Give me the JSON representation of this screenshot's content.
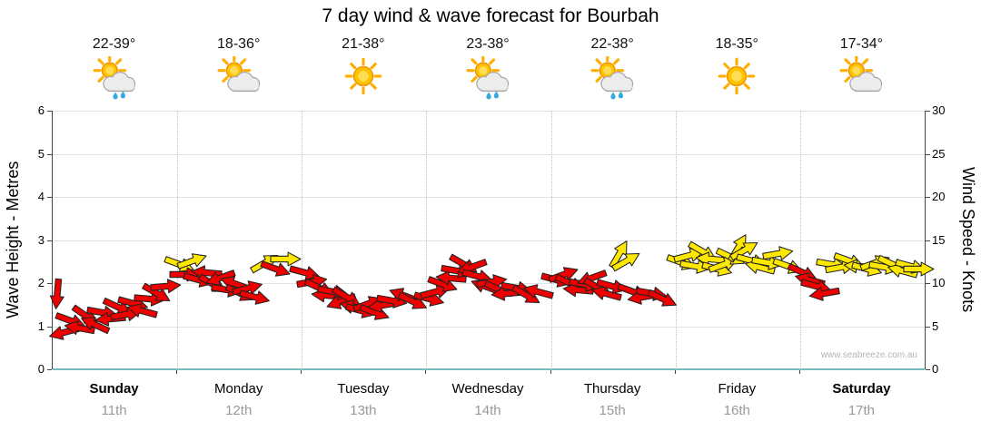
{
  "title": "7 day wind & wave forecast for Bourbah",
  "watermark": "www.seabreeze.com.au",
  "axes": {
    "left_label": "Wave Height - Metres",
    "right_label": "Wind Speed - Knots",
    "left_ticks": [
      0,
      1,
      2,
      3,
      4,
      5,
      6
    ],
    "right_ticks": [
      0,
      5,
      10,
      15,
      20,
      25,
      30
    ]
  },
  "days": [
    {
      "name": "Sunday",
      "date": "11th",
      "temp": "22-39°",
      "icon": "sun-cloud-rain",
      "bold": true
    },
    {
      "name": "Monday",
      "date": "12th",
      "temp": "18-36°",
      "icon": "sun-cloud",
      "bold": false
    },
    {
      "name": "Tuesday",
      "date": "13th",
      "temp": "21-38°",
      "icon": "sun",
      "bold": false
    },
    {
      "name": "Wednesday",
      "date": "14th",
      "temp": "23-38°",
      "icon": "sun-cloud-rain",
      "bold": false
    },
    {
      "name": "Thursday",
      "date": "15th",
      "temp": "22-38°",
      "icon": "sun-cloud-rain",
      "bold": false
    },
    {
      "name": "Friday",
      "date": "16th",
      "temp": "18-35°",
      "icon": "sun",
      "bold": false
    },
    {
      "name": "Saturday",
      "date": "17th",
      "temp": "17-34°",
      "icon": "sun-cloud",
      "bold": true
    }
  ],
  "chart_data": {
    "type": "scatter",
    "title": "7 day wind & wave forecast for Bourbah",
    "categories": [
      "Sunday",
      "Monday",
      "Tuesday",
      "Wednesday",
      "Thursday",
      "Friday",
      "Saturday"
    ],
    "left_axis": {
      "label": "Wave Height - Metres",
      "range": [
        0,
        6
      ]
    },
    "right_axis": {
      "label": "Wind Speed - Knots",
      "range": [
        0,
        30
      ]
    },
    "grid": true,
    "legend_position": "none",
    "colors": [
      "#ee0000",
      "#ffe800"
    ],
    "arrow_fields": [
      "x_fraction_of_week",
      "wind_speed_knots",
      "direction_deg_cw_from_east",
      "color_index_0red_1yellow"
    ],
    "arrows": [
      [
        0.005,
        8.7,
        95,
        0
      ],
      [
        0.012,
        4.3,
        165,
        0
      ],
      [
        0.021,
        5.6,
        20,
        0
      ],
      [
        0.03,
        4.8,
        190,
        0
      ],
      [
        0.039,
        6.2,
        35,
        0
      ],
      [
        0.048,
        5.2,
        205,
        0
      ],
      [
        0.057,
        6.6,
        10,
        0
      ],
      [
        0.066,
        5.8,
        175,
        0
      ],
      [
        0.075,
        7.2,
        25,
        0
      ],
      [
        0.084,
        6.4,
        350,
        0
      ],
      [
        0.093,
        7.6,
        15,
        0
      ],
      [
        0.102,
        6.8,
        195,
        0
      ],
      [
        0.111,
        8.2,
        5,
        0
      ],
      [
        0.12,
        8.8,
        30,
        0
      ],
      [
        0.13,
        9.6,
        355,
        0
      ],
      [
        0.146,
        12.2,
        20,
        1
      ],
      [
        0.152,
        11.0,
        0,
        0
      ],
      [
        0.16,
        12.6,
        340,
        1
      ],
      [
        0.168,
        10.4,
        15,
        0
      ],
      [
        0.176,
        11.2,
        185,
        0
      ],
      [
        0.184,
        9.8,
        30,
        0
      ],
      [
        0.192,
        10.6,
        160,
        0
      ],
      [
        0.2,
        9.2,
        10,
        0
      ],
      [
        0.208,
        10.0,
        200,
        0
      ],
      [
        0.216,
        8.8,
        25,
        0
      ],
      [
        0.224,
        9.4,
        345,
        0
      ],
      [
        0.232,
        8.4,
        15,
        0
      ],
      [
        0.244,
        12.4,
        330,
        1
      ],
      [
        0.256,
        11.6,
        20,
        0
      ],
      [
        0.268,
        12.8,
        0,
        1
      ],
      [
        0.29,
        11.2,
        15,
        0
      ],
      [
        0.298,
        10.2,
        350,
        0
      ],
      [
        0.306,
        9.4,
        25,
        0
      ],
      [
        0.314,
        8.6,
        185,
        0
      ],
      [
        0.322,
        9.0,
        10,
        0
      ],
      [
        0.33,
        7.8,
        160,
        0
      ],
      [
        0.338,
        8.4,
        30,
        0
      ],
      [
        0.346,
        7.2,
        195,
        0
      ],
      [
        0.354,
        6.8,
        15,
        0
      ],
      [
        0.362,
        7.6,
        340,
        0
      ],
      [
        0.37,
        6.6,
        20,
        0
      ],
      [
        0.378,
        7.4,
        170,
        0
      ],
      [
        0.39,
        8.0,
        10,
        0
      ],
      [
        0.402,
        8.6,
        200,
        0
      ],
      [
        0.414,
        7.8,
        25,
        0
      ],
      [
        0.432,
        8.2,
        15,
        0
      ],
      [
        0.44,
        9.0,
        345,
        0
      ],
      [
        0.448,
        9.8,
        20,
        0
      ],
      [
        0.456,
        10.6,
        185,
        0
      ],
      [
        0.464,
        11.4,
        10,
        0
      ],
      [
        0.472,
        12.2,
        30,
        0
      ],
      [
        0.48,
        11.8,
        160,
        0
      ],
      [
        0.488,
        10.8,
        15,
        0
      ],
      [
        0.496,
        9.6,
        200,
        0
      ],
      [
        0.504,
        10.2,
        350,
        0
      ],
      [
        0.512,
        9.2,
        25,
        0
      ],
      [
        0.52,
        8.8,
        175,
        0
      ],
      [
        0.532,
        9.4,
        10,
        0
      ],
      [
        0.544,
        8.6,
        30,
        0
      ],
      [
        0.556,
        9.0,
        195,
        0
      ],
      [
        0.578,
        10.4,
        15,
        0
      ],
      [
        0.586,
        11.0,
        340,
        0
      ],
      [
        0.594,
        10.0,
        25,
        0
      ],
      [
        0.602,
        9.2,
        185,
        0
      ],
      [
        0.61,
        9.8,
        10,
        0
      ],
      [
        0.618,
        10.6,
        160,
        0
      ],
      [
        0.626,
        9.4,
        30,
        0
      ],
      [
        0.634,
        8.8,
        195,
        0
      ],
      [
        0.642,
        9.6,
        15,
        0
      ],
      [
        0.65,
        13.4,
        300,
        1
      ],
      [
        0.658,
        12.6,
        330,
        1
      ],
      [
        0.666,
        9.0,
        20,
        0
      ],
      [
        0.676,
        8.4,
        170,
        0
      ],
      [
        0.688,
        8.8,
        10,
        0
      ],
      [
        0.7,
        8.2,
        25,
        0
      ],
      [
        0.722,
        12.4,
        20,
        1
      ],
      [
        0.73,
        13.2,
        345,
        1
      ],
      [
        0.738,
        12.0,
        10,
        1
      ],
      [
        0.746,
        13.6,
        30,
        1
      ],
      [
        0.754,
        12.8,
        185,
        1
      ],
      [
        0.762,
        11.6,
        15,
        1
      ],
      [
        0.77,
        12.2,
        340,
        1
      ],
      [
        0.778,
        13.0,
        25,
        1
      ],
      [
        0.786,
        14.2,
        300,
        1
      ],
      [
        0.794,
        13.8,
        330,
        1
      ],
      [
        0.802,
        12.6,
        15,
        1
      ],
      [
        0.81,
        11.8,
        195,
        1
      ],
      [
        0.82,
        12.4,
        10,
        1
      ],
      [
        0.832,
        13.4,
        350,
        1
      ],
      [
        0.844,
        12.0,
        20,
        1
      ],
      [
        0.86,
        11.2,
        25,
        0
      ],
      [
        0.868,
        10.4,
        195,
        0
      ],
      [
        0.876,
        9.6,
        15,
        0
      ],
      [
        0.884,
        8.8,
        170,
        0
      ],
      [
        0.894,
        12.2,
        10,
        1
      ],
      [
        0.904,
        11.8,
        350,
        1
      ],
      [
        0.914,
        12.6,
        20,
        1
      ],
      [
        0.924,
        12.0,
        185,
        1
      ],
      [
        0.934,
        11.6,
        15,
        1
      ],
      [
        0.944,
        12.4,
        340,
        1
      ],
      [
        0.954,
        11.8,
        10,
        1
      ],
      [
        0.964,
        12.2,
        25,
        1
      ],
      [
        0.974,
        11.4,
        195,
        1
      ],
      [
        0.984,
        12.0,
        15,
        1
      ],
      [
        0.994,
        11.6,
        0,
        1
      ]
    ]
  }
}
